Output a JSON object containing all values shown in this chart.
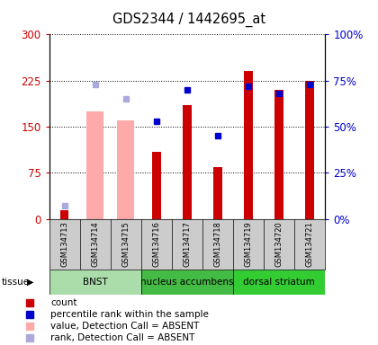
{
  "title": "GDS2344 / 1442695_at",
  "samples": [
    "GSM134713",
    "GSM134714",
    "GSM134715",
    "GSM134716",
    "GSM134717",
    "GSM134718",
    "GSM134719",
    "GSM134720",
    "GSM134721"
  ],
  "count_values": [
    15,
    null,
    null,
    110,
    185,
    85,
    240,
    210,
    225
  ],
  "rank_pct": [
    null,
    null,
    null,
    53,
    70,
    45,
    72,
    68,
    73
  ],
  "absent_value_bars": [
    null,
    175,
    160,
    null,
    null,
    null,
    null,
    null,
    null
  ],
  "absent_rank_pct": [
    7,
    73,
    65,
    null,
    null,
    null,
    null,
    null,
    null
  ],
  "tissues": [
    {
      "label": "BNST",
      "start": 0,
      "end": 3,
      "color": "#aaddaa"
    },
    {
      "label": "nucleus accumbens",
      "start": 3,
      "end": 6,
      "color": "#44bb44"
    },
    {
      "label": "dorsal striatum",
      "start": 6,
      "end": 9,
      "color": "#33cc33"
    }
  ],
  "ylim_left": [
    0,
    300
  ],
  "ylim_right": [
    0,
    100
  ],
  "yticks_left": [
    0,
    75,
    150,
    225,
    300
  ],
  "ytick_labels_left": [
    "0",
    "75",
    "150",
    "225",
    "300"
  ],
  "yticks_right": [
    0,
    25,
    50,
    75,
    100
  ],
  "ytick_labels_right": [
    "0%",
    "25%",
    "50%",
    "75%",
    "100%"
  ],
  "bar_color_red": "#cc0000",
  "bar_color_pink": "#ffaaaa",
  "dot_color_blue": "#0000cc",
  "dot_color_lightblue": "#aaaadd",
  "bg_color": "#ffffff",
  "tick_color_left": "#cc0000",
  "tick_color_right": "#0000cc",
  "tissue_label": "tissue",
  "legend_items": [
    {
      "label": "count",
      "color": "#cc0000"
    },
    {
      "label": "percentile rank within the sample",
      "color": "#0000cc"
    },
    {
      "label": "value, Detection Call = ABSENT",
      "color": "#ffaaaa"
    },
    {
      "label": "rank, Detection Call = ABSENT",
      "color": "#aaaadd"
    }
  ]
}
